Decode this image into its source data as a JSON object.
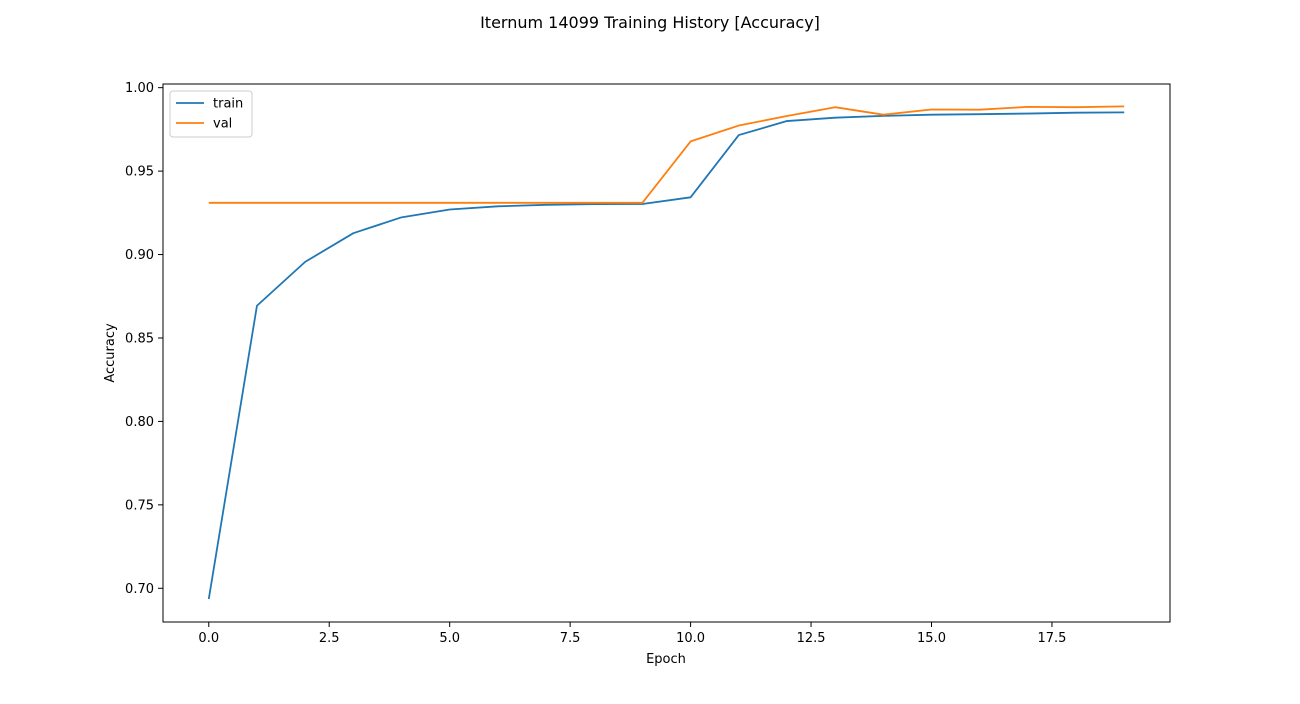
{
  "chart_data": {
    "type": "line",
    "title": "Iternum 14099 Training History [Accuracy]",
    "xlabel": "Epoch",
    "ylabel": "Accuracy",
    "xlim": [
      -0.95,
      19.95
    ],
    "ylim": [
      0.6798,
      1.0022
    ],
    "xticks": [
      0.0,
      2.5,
      5.0,
      7.5,
      10.0,
      12.5,
      15.0,
      17.5
    ],
    "xtick_labels": [
      "0.0",
      "2.5",
      "5.0",
      "7.5",
      "10.0",
      "12.5",
      "15.0",
      "17.5"
    ],
    "yticks": [
      0.7,
      0.75,
      0.8,
      0.85,
      0.9,
      0.95,
      1.0
    ],
    "ytick_labels": [
      "0.70",
      "0.75",
      "0.80",
      "0.85",
      "0.90",
      "0.95",
      "1.00"
    ],
    "grid": false,
    "legend": "upper-left",
    "x": [
      0,
      1,
      2,
      3,
      4,
      5,
      6,
      7,
      8,
      9,
      10,
      11,
      12,
      13,
      14,
      15,
      16,
      17,
      18,
      19
    ],
    "series": [
      {
        "name": "train",
        "color": "#1f77b4",
        "values": [
          0.6936,
          0.8693,
          0.8956,
          0.9128,
          0.9223,
          0.927,
          0.9289,
          0.9298,
          0.9302,
          0.9303,
          0.9343,
          0.9716,
          0.98,
          0.982,
          0.9831,
          0.9838,
          0.9841,
          0.9845,
          0.985,
          0.9852
        ]
      },
      {
        "name": "val",
        "color": "#ff7f0e",
        "values": [
          0.931,
          0.931,
          0.931,
          0.931,
          0.931,
          0.931,
          0.931,
          0.931,
          0.931,
          0.931,
          0.9678,
          0.9773,
          0.983,
          0.9883,
          0.9838,
          0.9869,
          0.9868,
          0.9885,
          0.9883,
          0.9888
        ]
      }
    ]
  }
}
